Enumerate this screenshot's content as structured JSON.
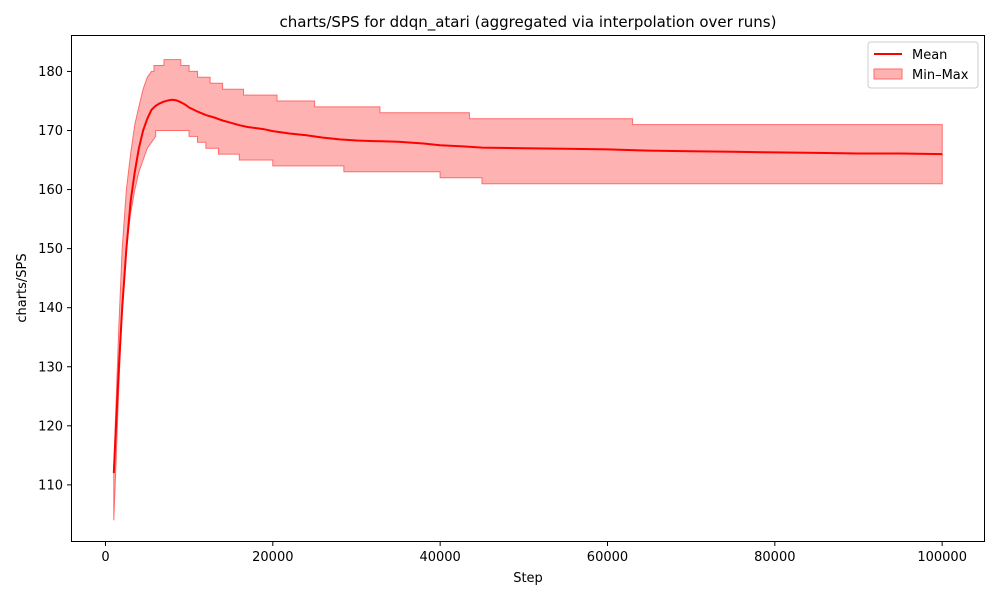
{
  "chart_data": {
    "type": "line",
    "title": "charts/SPS for ddqn_atari (aggregated via interpolation over runs)",
    "xlabel": "Step",
    "ylabel": "charts/SPS",
    "xlim": [
      -4000,
      105000
    ],
    "ylim": [
      100.5,
      186
    ],
    "xticks": [
      0,
      20000,
      40000,
      60000,
      80000,
      100000
    ],
    "xtick_labels": [
      "0",
      "20000",
      "40000",
      "60000",
      "80000",
      "100000"
    ],
    "yticks": [
      110,
      120,
      130,
      140,
      150,
      160,
      170,
      180
    ],
    "ytick_labels": [
      "110",
      "120",
      "130",
      "140",
      "150",
      "160",
      "170",
      "180"
    ],
    "grid": false,
    "legend_position": "top-right",
    "colors": {
      "mean": "#ff0000",
      "band_fill": "#ff0000",
      "band_edge": "#ff6b6b",
      "axes": "#000000"
    },
    "series": [
      {
        "name": "Mean",
        "kind": "line",
        "x": [
          1000,
          1300,
          1600,
          2000,
          2500,
          3000,
          3500,
          4000,
          4500,
          5000,
          5500,
          6000,
          6500,
          7000,
          7500,
          8000,
          8500,
          9000,
          9500,
          10000,
          11000,
          12000,
          13000,
          14000,
          15000,
          16000,
          17000,
          18000,
          19000,
          20000,
          22000,
          24000,
          26000,
          28000,
          30000,
          32000,
          35000,
          38000,
          40000,
          43000,
          45000,
          50000,
          55000,
          60000,
          65000,
          70000,
          75000,
          80000,
          85000,
          90000,
          95000,
          100000
        ],
        "y": [
          112,
          121,
          130,
          140,
          150,
          158,
          163,
          167,
          170,
          172,
          173.5,
          174.2,
          174.6,
          174.9,
          175.1,
          175.2,
          175.1,
          174.8,
          174.4,
          173.9,
          173.2,
          172.6,
          172.2,
          171.7,
          171.3,
          170.9,
          170.6,
          170.4,
          170.2,
          169.9,
          169.5,
          169.2,
          168.8,
          168.5,
          168.3,
          168.2,
          168.1,
          167.8,
          167.5,
          167.3,
          167.1,
          167.0,
          166.9,
          166.8,
          166.6,
          166.5,
          166.4,
          166.3,
          166.2,
          166.1,
          166.1,
          166.0
        ]
      },
      {
        "name": "Min–Max",
        "kind": "band",
        "x_upper": [
          1000,
          1300,
          1600,
          2000,
          2500,
          3000,
          3500,
          4000,
          4500,
          5000,
          5500,
          5800,
          5800,
          7000,
          7000,
          9000,
          9000,
          10000,
          10000,
          11000,
          11000,
          12500,
          12500,
          14000,
          14000,
          16500,
          16500,
          20500,
          20500,
          25000,
          25000,
          32800,
          32800,
          43500,
          43500,
          63000,
          63000,
          100000
        ],
        "y_upper": [
          113,
          125,
          137,
          150,
          160,
          166,
          171,
          174,
          177,
          179,
          180,
          180,
          181,
          181,
          182,
          182,
          181,
          181,
          180,
          180,
          179,
          179,
          178,
          178,
          177,
          177,
          176,
          176,
          175,
          175,
          174,
          174,
          173,
          173,
          172,
          172,
          171,
          171
        ],
        "x_lower": [
          1000,
          1300,
          1600,
          2000,
          2500,
          3000,
          3500,
          4000,
          4500,
          5000,
          5500,
          6000,
          6000,
          10000,
          10000,
          11000,
          11000,
          12000,
          12000,
          13500,
          13500,
          16000,
          16000,
          20000,
          20000,
          28500,
          28500,
          40000,
          40000,
          45000,
          45000,
          100000
        ],
        "y_lower": [
          104,
          115,
          127,
          140,
          150,
          156,
          160,
          163,
          165,
          167,
          168,
          169,
          170,
          170,
          169,
          169,
          168,
          168,
          167,
          167,
          166,
          166,
          165,
          165,
          164,
          164,
          163,
          163,
          162,
          162,
          161,
          161
        ]
      }
    ]
  }
}
